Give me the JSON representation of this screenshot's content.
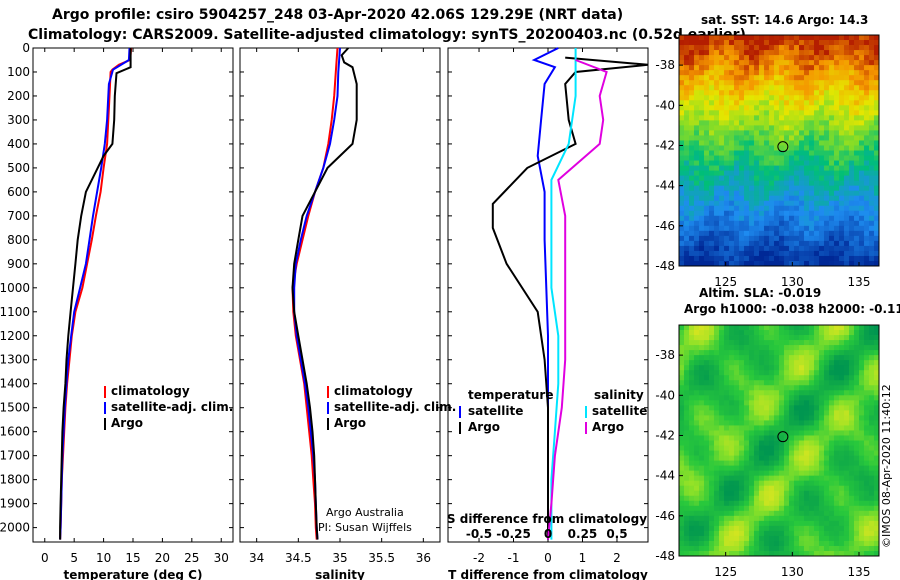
{
  "header": {
    "line1": "Argo profile: csiro 5904257_248 03-Apr-2020 42.06S 129.29E (NRT data)",
    "line2": "Climatology: CARS2009. Satellite-adjusted climatology: synTS_20200403.nc (0.52d earlier)"
  },
  "colors": {
    "climatology": "#ff0000",
    "satellite": "#0000ff",
    "argo": "#000000",
    "satellite_s": "#00e5ff",
    "argo_s": "#e000e0"
  },
  "chart_data": [
    {
      "type": "line",
      "name": "temperature",
      "xlabel": "temperature (deg C)",
      "ylabel": "depth",
      "xlim": [
        -2,
        32
      ],
      "ylim": [
        0,
        2060
      ],
      "x_ticks": [
        0,
        5,
        10,
        15,
        20,
        25,
        30
      ],
      "x_tick_labels": [
        "0",
        "5",
        "10",
        "15",
        "20",
        "25",
        "30"
      ],
      "y_ticks": [
        0,
        100,
        200,
        300,
        400,
        500,
        600,
        700,
        800,
        900,
        1000,
        1100,
        1200,
        1300,
        1400,
        1500,
        1600,
        1700,
        1800,
        1900,
        2000
      ],
      "y_tick_labels": [
        "0",
        "100",
        "200",
        "300",
        "400",
        "500",
        "600",
        "700",
        "800",
        "900",
        "1000",
        "1100",
        "1200",
        "1300",
        "1400",
        "1500",
        "1600",
        "1700",
        "1800",
        "1900",
        "2000"
      ],
      "legend": [
        "climatology",
        "satellite-adj. clim.",
        "Argo"
      ],
      "series": [
        {
          "name": "climatology",
          "color": "#ff0000",
          "points": [
            [
              14.7,
              0
            ],
            [
              14.5,
              50
            ],
            [
              12.6,
              70
            ],
            [
              11.5,
              90
            ],
            [
              11.2,
              100
            ],
            [
              11.0,
              200
            ],
            [
              10.8,
              300
            ],
            [
              10.6,
              400
            ],
            [
              10.0,
              500
            ],
            [
              9.5,
              600
            ],
            [
              8.7,
              700
            ],
            [
              8.0,
              800
            ],
            [
              7.2,
              900
            ],
            [
              6.4,
              1000
            ],
            [
              5.2,
              1100
            ],
            [
              4.6,
              1200
            ],
            [
              4.2,
              1300
            ],
            [
              3.8,
              1400
            ],
            [
              3.5,
              1500
            ],
            [
              3.3,
              1600
            ],
            [
              3.1,
              1700
            ],
            [
              2.9,
              1800
            ],
            [
              2.8,
              1900
            ],
            [
              2.7,
              2000
            ],
            [
              2.6,
              2050
            ]
          ]
        },
        {
          "name": "satellite-adj. clim.",
          "color": "#0000ff",
          "points": [
            [
              14.4,
              0
            ],
            [
              14.3,
              50
            ],
            [
              11.6,
              90
            ],
            [
              10.9,
              150
            ],
            [
              10.6,
              300
            ],
            [
              10.2,
              400
            ],
            [
              9.6,
              500
            ],
            [
              8.9,
              600
            ],
            [
              8.2,
              700
            ],
            [
              7.6,
              800
            ],
            [
              7.0,
              900
            ],
            [
              6.0,
              1000
            ],
            [
              5.0,
              1100
            ],
            [
              4.5,
              1200
            ],
            [
              4.0,
              1300
            ],
            [
              3.7,
              1400
            ],
            [
              3.4,
              1500
            ],
            [
              3.2,
              1600
            ],
            [
              3.0,
              1700
            ],
            [
              2.9,
              1800
            ],
            [
              2.8,
              1900
            ],
            [
              2.7,
              2000
            ],
            [
              2.6,
              2050
            ]
          ]
        },
        {
          "name": "Argo",
          "color": "#000000",
          "points": [
            [
              14.6,
              0
            ],
            [
              14.6,
              80
            ],
            [
              12.2,
              105
            ],
            [
              11.9,
              200
            ],
            [
              11.8,
              300
            ],
            [
              11.5,
              400
            ],
            [
              10.0,
              450
            ],
            [
              9.0,
              500
            ],
            [
              7.0,
              600
            ],
            [
              6.2,
              700
            ],
            [
              5.6,
              800
            ],
            [
              5.2,
              900
            ],
            [
              4.8,
              1000
            ],
            [
              4.4,
              1100
            ],
            [
              4.0,
              1200
            ],
            [
              3.7,
              1300
            ],
            [
              3.5,
              1400
            ],
            [
              3.2,
              1500
            ],
            [
              3.0,
              1600
            ],
            [
              2.9,
              1700
            ],
            [
              2.8,
              1800
            ],
            [
              2.7,
              1900
            ],
            [
              2.6,
              2000
            ],
            [
              2.6,
              2050
            ]
          ]
        }
      ]
    },
    {
      "type": "line",
      "name": "salinity",
      "xlabel": "salinity",
      "xlim": [
        33.8,
        36.2
      ],
      "ylim": [
        0,
        2060
      ],
      "x_ticks": [
        34,
        34.5,
        35,
        35.5,
        36
      ],
      "x_tick_labels": [
        "34",
        "34.5",
        "35",
        "35.5",
        "36"
      ],
      "legend": [
        "climatology",
        "satellite-adj. clim.",
        "Argo"
      ],
      "annotation": [
        "Argo Australia",
        "PI: Susan Wijffels"
      ],
      "series": [
        {
          "name": "climatology",
          "color": "#ff0000",
          "points": [
            [
              34.97,
              0
            ],
            [
              34.95,
              100
            ],
            [
              34.93,
              200
            ],
            [
              34.9,
              300
            ],
            [
              34.86,
              400
            ],
            [
              34.8,
              500
            ],
            [
              34.7,
              600
            ],
            [
              34.62,
              700
            ],
            [
              34.55,
              800
            ],
            [
              34.48,
              900
            ],
            [
              34.43,
              1000
            ],
            [
              34.44,
              1100
            ],
            [
              34.47,
              1200
            ],
            [
              34.52,
              1300
            ],
            [
              34.57,
              1400
            ],
            [
              34.6,
              1500
            ],
            [
              34.63,
              1600
            ],
            [
              34.66,
              1700
            ],
            [
              34.68,
              1800
            ],
            [
              34.7,
              1900
            ],
            [
              34.71,
              2000
            ],
            [
              34.72,
              2050
            ]
          ]
        },
        {
          "name": "satellite-adj. clim.",
          "color": "#0000ff",
          "points": [
            [
              35.0,
              0
            ],
            [
              34.98,
              100
            ],
            [
              34.97,
              200
            ],
            [
              34.93,
              300
            ],
            [
              34.88,
              400
            ],
            [
              34.8,
              500
            ],
            [
              34.7,
              600
            ],
            [
              34.6,
              700
            ],
            [
              34.53,
              800
            ],
            [
              34.47,
              900
            ],
            [
              34.45,
              1000
            ],
            [
              34.45,
              1100
            ],
            [
              34.48,
              1200
            ],
            [
              34.53,
              1300
            ],
            [
              34.58,
              1400
            ],
            [
              34.62,
              1500
            ],
            [
              34.65,
              1600
            ],
            [
              34.68,
              1700
            ],
            [
              34.7,
              1800
            ],
            [
              34.71,
              1900
            ],
            [
              34.72,
              2000
            ],
            [
              34.73,
              2050
            ]
          ]
        },
        {
          "name": "Argo",
          "color": "#000000",
          "points": [
            [
              35.1,
              0
            ],
            [
              35.02,
              30
            ],
            [
              35.05,
              60
            ],
            [
              35.15,
              80
            ],
            [
              35.2,
              150
            ],
            [
              35.2,
              300
            ],
            [
              35.15,
              400
            ],
            [
              35.0,
              450
            ],
            [
              34.85,
              500
            ],
            [
              34.7,
              600
            ],
            [
              34.55,
              700
            ],
            [
              34.5,
              800
            ],
            [
              34.45,
              900
            ],
            [
              34.43,
              1000
            ],
            [
              34.45,
              1100
            ],
            [
              34.5,
              1200
            ],
            [
              34.55,
              1300
            ],
            [
              34.6,
              1400
            ],
            [
              34.64,
              1500
            ],
            [
              34.67,
              1600
            ],
            [
              34.69,
              1700
            ],
            [
              34.7,
              1800
            ],
            [
              34.71,
              1900
            ],
            [
              34.72,
              2000
            ],
            [
              34.73,
              2050
            ]
          ]
        }
      ]
    },
    {
      "type": "line",
      "name": "difference",
      "xlabel": "T difference from climatology",
      "xlabel_top": "S difference from climatology",
      "xlim": [
        -2.9,
        2.9
      ],
      "ylim": [
        0,
        2060
      ],
      "x_ticks": [
        -2,
        -1,
        0,
        1,
        2
      ],
      "x_tick_labels": [
        "-2",
        "-1",
        "0",
        "1",
        "2"
      ],
      "s_tick_labels": [
        "-0.5",
        "-0.25",
        "0",
        "0.25",
        "0.5"
      ],
      "legend_temperature_title": "temperature",
      "legend_salinity_title": "salinity",
      "legend_temperature": [
        "satellite",
        "Argo"
      ],
      "legend_salinity": [
        "satellite",
        "Argo"
      ],
      "series": [
        {
          "name": "T satellite",
          "color": "#0000ff",
          "points": [
            [
              0.3,
              0
            ],
            [
              -0.4,
              50
            ],
            [
              0.2,
              80
            ],
            [
              -0.1,
              150
            ],
            [
              -0.2,
              300
            ],
            [
              -0.3,
              450
            ],
            [
              -0.1,
              600
            ],
            [
              -0.1,
              800
            ],
            [
              -0.05,
              1000
            ],
            [
              0,
              1200
            ],
            [
              0,
              1500
            ],
            [
              0,
              2050
            ]
          ]
        },
        {
          "name": "T Argo",
          "color": "#000000",
          "points": [
            [
              0.5,
              40
            ],
            [
              2.9,
              70
            ],
            [
              0.8,
              100
            ],
            [
              0.5,
              150
            ],
            [
              0.6,
              300
            ],
            [
              0.8,
              400
            ],
            [
              -0.6,
              500
            ],
            [
              -1.6,
              650
            ],
            [
              -1.6,
              750
            ],
            [
              -1.2,
              900
            ],
            [
              -0.3,
              1100
            ],
            [
              -0.1,
              1300
            ],
            [
              0,
              1500
            ],
            [
              0,
              2050
            ]
          ]
        },
        {
          "name": "S satellite",
          "color": "#00e5ff",
          "points": [
            [
              0.8,
              0
            ],
            [
              0.8,
              200
            ],
            [
              0.6,
              400
            ],
            [
              0.1,
              550
            ],
            [
              0.1,
              800
            ],
            [
              0.1,
              1000
            ],
            [
              0.3,
              1200
            ],
            [
              0.3,
              1400
            ],
            [
              0.2,
              1600
            ],
            [
              0.1,
              1800
            ],
            [
              0.1,
              2050
            ]
          ]
        },
        {
          "name": "S Argo",
          "color": "#e000e0",
          "points": [
            [
              0.8,
              50
            ],
            [
              1.7,
              100
            ],
            [
              1.5,
              200
            ],
            [
              1.6,
              300
            ],
            [
              1.5,
              400
            ],
            [
              0.3,
              550
            ],
            [
              0.5,
              700
            ],
            [
              0.5,
              900
            ],
            [
              0.5,
              1100
            ],
            [
              0.5,
              1300
            ],
            [
              0.4,
              1500
            ],
            [
              0.2,
              1700
            ],
            [
              0.1,
              1900
            ],
            [
              0,
              2050
            ]
          ]
        }
      ]
    },
    {
      "type": "heatmap",
      "name": "sst_map",
      "title": "sat. SST: 14.6 Argo: 14.3",
      "xlim": [
        121.5,
        136.5
      ],
      "ylim": [
        -48,
        -36.5
      ],
      "x_ticks": [
        125,
        130,
        135
      ],
      "x_tick_labels": [
        "125",
        "130",
        "135"
      ],
      "y_ticks": [
        -38,
        -40,
        -42,
        -44,
        -46,
        -48
      ],
      "y_tick_labels": [
        "-38",
        "-40",
        "-42",
        "-44",
        "-46",
        "-48"
      ],
      "marker": [
        129.29,
        -42.06
      ]
    },
    {
      "type": "heatmap",
      "name": "sla_map",
      "title1": "Altim. SLA: -0.019",
      "title2": "Argo h1000: -0.038 h2000: -0.11",
      "xlim": [
        121.5,
        136.5
      ],
      "ylim": [
        -48,
        -36.5
      ],
      "x_ticks": [
        125,
        130,
        135
      ],
      "x_tick_labels": [
        "125",
        "130",
        "135"
      ],
      "y_ticks": [
        -38,
        -40,
        -42,
        -44,
        -46,
        -48
      ],
      "y_tick_labels": [
        "-38",
        "-40",
        "-42",
        "-44",
        "-46",
        "-48"
      ],
      "marker": [
        129.29,
        -42.06
      ]
    }
  ],
  "credit": "©IMOS 08-Apr-2020 11:40:12"
}
